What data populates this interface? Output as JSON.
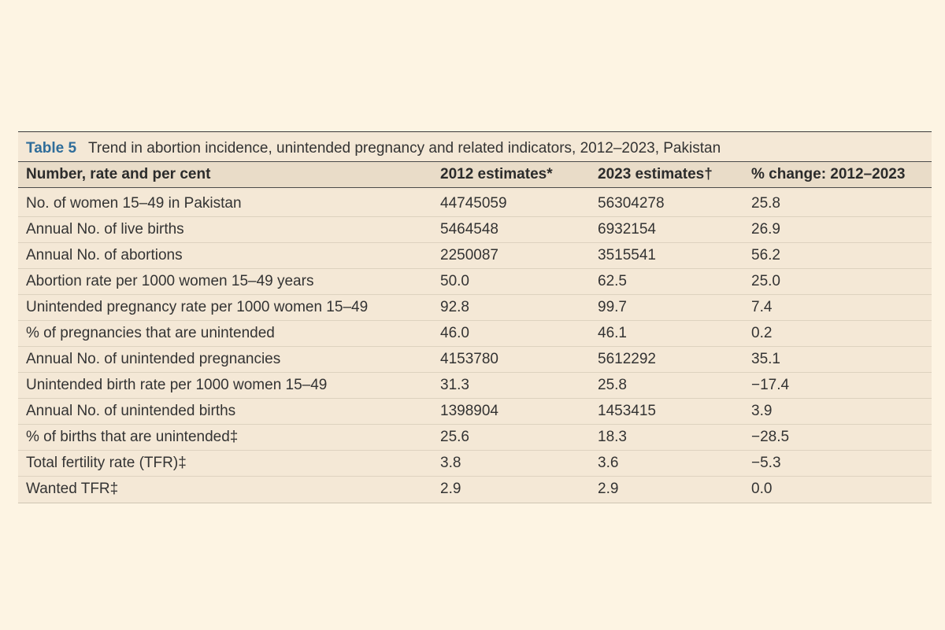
{
  "table": {
    "label": "Table 5",
    "title": "Trend in abortion incidence, unintended pregnancy and related indicators, 2012–2023, Pakistan",
    "columns": [
      "Number, rate and per cent",
      "2012 estimates*",
      "2023 estimates†",
      "% change: 2012–2023"
    ],
    "rows": [
      [
        "No. of women 15–49 in Pakistan",
        "44745059",
        "56304278",
        "25.8"
      ],
      [
        "Annual No. of live births",
        "5464548",
        "6932154",
        "26.9"
      ],
      [
        "Annual No. of abortions",
        "2250087",
        "3515541",
        "56.2"
      ],
      [
        "Abortion rate per 1000 women 15–49 years",
        "50.0",
        "62.5",
        "25.0"
      ],
      [
        "Unintended pregnancy rate per 1000 women 15–49",
        "92.8",
        "99.7",
        "7.4"
      ],
      [
        "% of pregnancies that are unintended",
        "46.0",
        "46.1",
        "0.2"
      ],
      [
        "Annual No. of unintended pregnancies",
        "4153780",
        "5612292",
        "35.1"
      ],
      [
        "Unintended birth rate per 1000 women 15–49",
        "31.3",
        "25.8",
        "−17.4"
      ],
      [
        "Annual No. of unintended births",
        "1398904",
        "1453415",
        "3.9"
      ],
      [
        "% of births that are unintended‡",
        "25.6",
        "18.3",
        "−28.5"
      ],
      [
        "Total fertility rate (TFR)‡",
        "3.8",
        "3.6",
        "−5.3"
      ],
      [
        "Wanted TFR‡",
        "2.9",
        "2.9",
        "0.0"
      ]
    ]
  },
  "colors": {
    "page_background": "#fdf4e3",
    "panel_background": "#f4e8d6",
    "header_background": "#e9dcc8",
    "label_accent": "#2f6d9a"
  }
}
